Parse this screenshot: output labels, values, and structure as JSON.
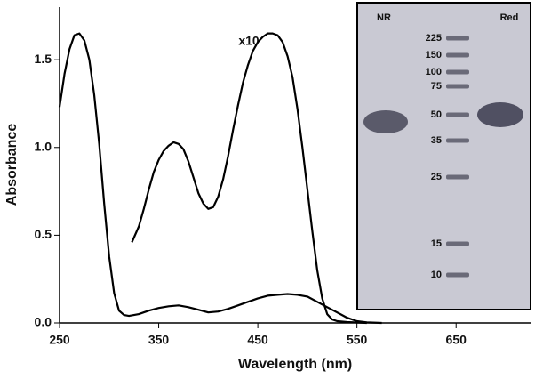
{
  "chart_data": {
    "type": "line",
    "xlabel": "Wavelength (nm)",
    "ylabel": "Absorbance",
    "annotation": "x10",
    "xlim": [
      250,
      726
    ],
    "ylim": [
      0,
      1.8
    ],
    "xticks": [
      250,
      350,
      450,
      550,
      650
    ],
    "yticks": [
      {
        "value": 0,
        "label": "0.0"
      },
      {
        "value": 0.5,
        "label": "0.5"
      },
      {
        "value": 1,
        "label": "1.0"
      },
      {
        "value": 1.5,
        "label": "1.5"
      }
    ],
    "series": [
      {
        "color": "#000000",
        "x": [
          250,
          255,
          260,
          265,
          270,
          275,
          280,
          285,
          290,
          295,
          300,
          305,
          310,
          315,
          320,
          330,
          340,
          350,
          360,
          370,
          380,
          390,
          400,
          410,
          420,
          430,
          440,
          450,
          460,
          470,
          480,
          490,
          500,
          510,
          520,
          530,
          540,
          550,
          560,
          575
        ],
        "values": [
          1.23,
          1.42,
          1.56,
          1.64,
          1.65,
          1.61,
          1.5,
          1.3,
          1.02,
          0.68,
          0.38,
          0.17,
          0.07,
          0.045,
          0.04,
          0.05,
          0.07,
          0.085,
          0.095,
          0.1,
          0.09,
          0.075,
          0.06,
          0.065,
          0.08,
          0.1,
          0.12,
          0.14,
          0.155,
          0.16,
          0.165,
          0.16,
          0.15,
          0.12,
          0.09,
          0.06,
          0.03,
          0.01,
          0.003,
          0
        ]
      },
      {
        "color": "#000000",
        "x": [
          323,
          330,
          335,
          340,
          345,
          350,
          355,
          360,
          365,
          370,
          375,
          380,
          385,
          390,
          395,
          400,
          405,
          410,
          415,
          420,
          425,
          430,
          435,
          440,
          445,
          450,
          455,
          460,
          465,
          470,
          475,
          480,
          485,
          490,
          495,
          500,
          505,
          510,
          515,
          520,
          525,
          530,
          540,
          560
        ],
        "values": [
          0.46,
          0.55,
          0.65,
          0.76,
          0.86,
          0.93,
          0.98,
          1.01,
          1.03,
          1.02,
          0.99,
          0.92,
          0.83,
          0.74,
          0.68,
          0.65,
          0.66,
          0.72,
          0.82,
          0.95,
          1.1,
          1.24,
          1.37,
          1.47,
          1.55,
          1.6,
          1.63,
          1.65,
          1.65,
          1.64,
          1.6,
          1.52,
          1.4,
          1.22,
          1.0,
          0.76,
          0.52,
          0.3,
          0.14,
          0.05,
          0.02,
          0.01,
          0.005,
          0
        ]
      }
    ],
    "inset": {
      "lanes": [
        "NR",
        "Red"
      ],
      "ladder_labels": [
        "225",
        "150",
        "100",
        "75",
        "50",
        "35",
        "25",
        "15",
        "10"
      ]
    }
  }
}
